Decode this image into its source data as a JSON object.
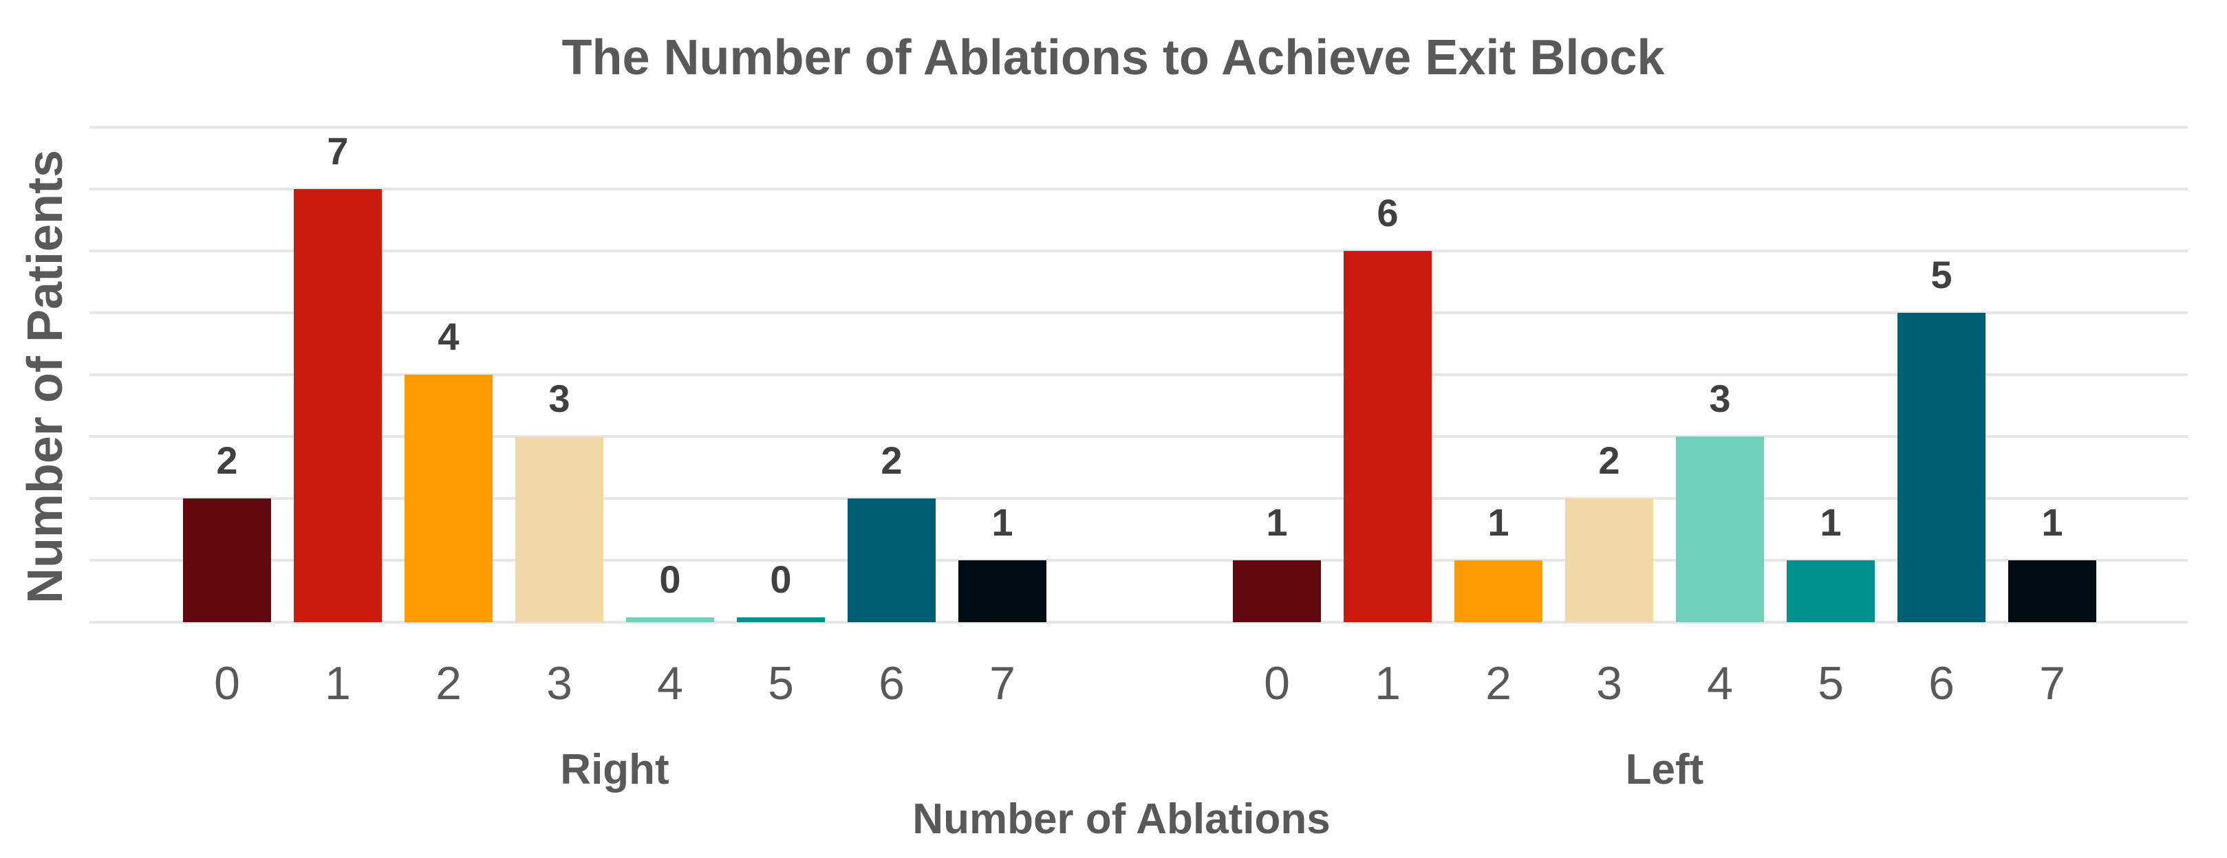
{
  "chart_data": {
    "type": "bar",
    "title": "The Number of Ablations to Achieve Exit Block",
    "xlabel": "Number of Ablations",
    "ylabel": "Number of Patients",
    "ylim": [
      0,
      8
    ],
    "grid": true,
    "legend": "none",
    "groups": [
      {
        "name": "Right",
        "categories": [
          "0",
          "1",
          "2",
          "3",
          "4",
          "5",
          "6",
          "7"
        ],
        "values": [
          2,
          7,
          4,
          3,
          0,
          0,
          2,
          1
        ]
      },
      {
        "name": "Left",
        "categories": [
          "0",
          "1",
          "2",
          "3",
          "4",
          "5",
          "6",
          "7"
        ],
        "values": [
          1,
          6,
          1,
          2,
          3,
          1,
          5,
          1
        ]
      }
    ],
    "colors": [
      "#630a10",
      "#cc1a0e",
      "#fd9b00",
      "#f1d9a7",
      "#6fd0bb",
      "#00918f",
      "#005f73",
      "#010b13"
    ]
  }
}
